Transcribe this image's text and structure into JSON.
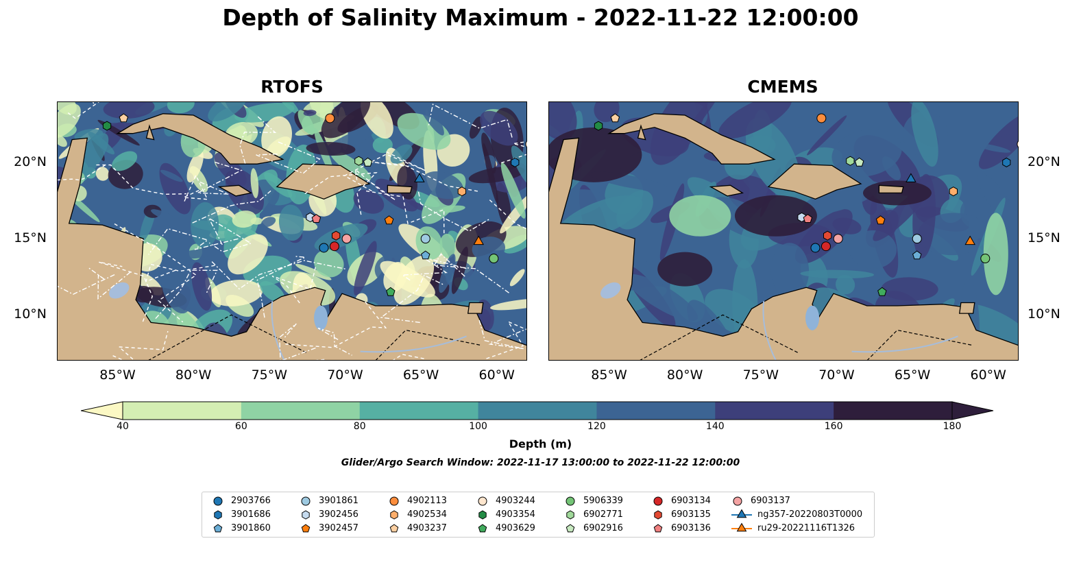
{
  "title": "Depth of Salinity Maximum - 2022-11-22 12:00:00",
  "panels": [
    {
      "name": "RTOFS"
    },
    {
      "name": "CMEMS"
    }
  ],
  "x_ticks": [
    "85°W",
    "80°W",
    "75°W",
    "70°W",
    "65°W",
    "60°W"
  ],
  "y_ticks": [
    "20°N",
    "15°N",
    "10°N"
  ],
  "colorbar": {
    "label": "Depth (m)",
    "ticks": [
      "40",
      "60",
      "80",
      "100",
      "120",
      "140",
      "160",
      "180"
    ],
    "colors": [
      "#fbf8c4",
      "#d4eeb3",
      "#8fd3a4",
      "#56b0a3",
      "#40859c",
      "#3c6493",
      "#3d3f7a",
      "#2e1e3b"
    ],
    "extend": "both"
  },
  "search_window": "Glider/Argo Search Window: 2022-11-17 13:00:00 to 2022-11-22 12:00:00",
  "colors": {
    "land": "#d2b48c",
    "lake": "#8fb3d9",
    "river": "#a6bddb"
  },
  "legend": [
    {
      "label": "2903766",
      "marker": "circle",
      "color": "#1f77b4"
    },
    {
      "label": "3901686",
      "marker": "hexagon",
      "color": "#1f77b4"
    },
    {
      "label": "3901860",
      "marker": "pentagon",
      "color": "#6baed6"
    },
    {
      "label": "3901861",
      "marker": "circle",
      "color": "#9ecae1"
    },
    {
      "label": "3902456",
      "marker": "hexagon",
      "color": "#c6dbef"
    },
    {
      "label": "3902457",
      "marker": "pentagon",
      "color": "#ff7f0e"
    },
    {
      "label": "4902113",
      "marker": "circle",
      "color": "#fd8d3c"
    },
    {
      "label": "4902534",
      "marker": "hexagon",
      "color": "#fdae6b"
    },
    {
      "label": "4903237",
      "marker": "pentagon",
      "color": "#fdd0a2"
    },
    {
      "label": "4903244",
      "marker": "circle",
      "color": "#fee6ce"
    },
    {
      "label": "4903354",
      "marker": "hexagon",
      "color": "#238b45"
    },
    {
      "label": "4903629",
      "marker": "pentagon",
      "color": "#41ab5d"
    },
    {
      "label": "5906339",
      "marker": "circle",
      "color": "#74c476"
    },
    {
      "label": "6902771",
      "marker": "hexagon",
      "color": "#a1d99b"
    },
    {
      "label": "6902916",
      "marker": "pentagon",
      "color": "#c7e9c0"
    },
    {
      "label": "6903134",
      "marker": "circle",
      "color": "#d62728"
    },
    {
      "label": "6903135",
      "marker": "hexagon",
      "color": "#e34a33"
    },
    {
      "label": "6903136",
      "marker": "pentagon",
      "color": "#f08080"
    },
    {
      "label": "6903137",
      "marker": "circle",
      "color": "#f4a3a3"
    },
    {
      "label": "ng357-20220803T0000",
      "marker": "triangle-line",
      "color": "#1f77b4"
    },
    {
      "label": "ru29-20221116T1326",
      "marker": "triangle-line",
      "color": "#ff7f0e"
    }
  ],
  "markers": [
    {
      "id": "2903766",
      "lon": -71.4,
      "lat": 14.4
    },
    {
      "id": "3901686",
      "lon": -58.8,
      "lat": 20.0
    },
    {
      "id": "3901860",
      "lon": -64.7,
      "lat": 13.9
    },
    {
      "id": "3901861",
      "lon": -64.7,
      "lat": 15.0
    },
    {
      "id": "3902456",
      "lon": -72.3,
      "lat": 16.4
    },
    {
      "id": "3902457",
      "lon": -67.1,
      "lat": 16.2
    },
    {
      "id": "4902113",
      "lon": -71.0,
      "lat": 22.9
    },
    {
      "id": "4902534",
      "lon": -62.3,
      "lat": 18.1
    },
    {
      "id": "4903237",
      "lon": -84.6,
      "lat": 22.9
    },
    {
      "id": "4903244",
      "lon": -57.8,
      "lat": 21.2
    },
    {
      "id": "4903354",
      "lon": -85.7,
      "lat": 22.4
    },
    {
      "id": "4903629",
      "lon": -67.0,
      "lat": 11.5
    },
    {
      "id": "5906339",
      "lon": -60.2,
      "lat": 13.7
    },
    {
      "id": "6902771",
      "lon": -69.1,
      "lat": 20.1
    },
    {
      "id": "6902916",
      "lon": -68.5,
      "lat": 20.0
    },
    {
      "id": "6903134",
      "lon": -70.7,
      "lat": 14.5
    },
    {
      "id": "6903135",
      "lon": -70.6,
      "lat": 15.2
    },
    {
      "id": "6903136",
      "lon": -71.9,
      "lat": 16.3
    },
    {
      "id": "6903137",
      "lon": -69.9,
      "lat": 15.0
    },
    {
      "id": "ng357-20220803T0000",
      "lon": -65.1,
      "lat": 18.9
    },
    {
      "id": "ru29-20221116T1326",
      "lon": -61.2,
      "lat": 14.8
    }
  ]
}
